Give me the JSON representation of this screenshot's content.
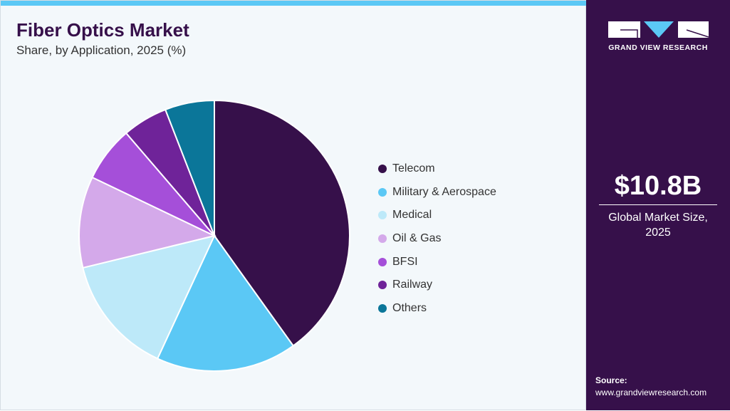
{
  "header": {
    "title": "Fiber Optics Market",
    "subtitle": "Share, by Application, 2025 (%)"
  },
  "sidebar": {
    "logo_text": "GRAND VIEW RESEARCH",
    "market_size": "$10.8B",
    "market_caption_1": "Global Market Size,",
    "market_caption_2": "2025",
    "source_label": "Source:",
    "source_url": "www.grandviewresearch.com"
  },
  "colors": {
    "accent": "#5bc8f5",
    "brand": "#36104a"
  },
  "chart_data": {
    "type": "pie",
    "title": "Fiber Optics Market",
    "subtitle": "Share, by Application, 2025 (%)",
    "legend_position": "right",
    "start_angle": "12 o'clock, clockwise",
    "slices": [
      {
        "label": "Telecom",
        "value": 40.1,
        "color": "#36104a"
      },
      {
        "label": "Military & Aerospace",
        "value": 16.8,
        "color": "#5bc8f5"
      },
      {
        "label": "Medical",
        "value": 14.3,
        "color": "#bde9f9"
      },
      {
        "label": "Oil & Gas",
        "value": 10.9,
        "color": "#d4a9ea"
      },
      {
        "label": "BFSI",
        "value": 6.6,
        "color": "#a54fd9"
      },
      {
        "label": "Railway",
        "value": 5.4,
        "color": "#6f2399"
      },
      {
        "label": "Others",
        "value": 5.9,
        "color": "#0b7699"
      }
    ]
  }
}
